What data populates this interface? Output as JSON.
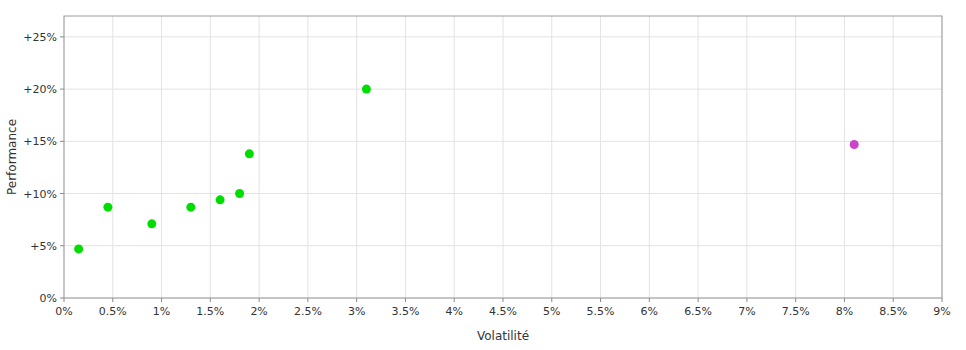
{
  "chart_data": {
    "type": "scatter",
    "xlabel": "Volatilité",
    "ylabel": "Performance",
    "xlim": [
      0,
      0.09
    ],
    "ylim": [
      0,
      0.27
    ],
    "xticks": [
      {
        "value": 0.0,
        "label": "0%"
      },
      {
        "value": 0.005,
        "label": "0.5%"
      },
      {
        "value": 0.01,
        "label": "1%"
      },
      {
        "value": 0.015,
        "label": "1.5%"
      },
      {
        "value": 0.02,
        "label": "2%"
      },
      {
        "value": 0.025,
        "label": "2.5%"
      },
      {
        "value": 0.03,
        "label": "3%"
      },
      {
        "value": 0.035,
        "label": "3.5%"
      },
      {
        "value": 0.04,
        "label": "4%"
      },
      {
        "value": 0.045,
        "label": "4.5%"
      },
      {
        "value": 0.05,
        "label": "5%"
      },
      {
        "value": 0.055,
        "label": "5.5%"
      },
      {
        "value": 0.06,
        "label": "6%"
      },
      {
        "value": 0.065,
        "label": "6.5%"
      },
      {
        "value": 0.07,
        "label": "7%"
      },
      {
        "value": 0.075,
        "label": "7.5%"
      },
      {
        "value": 0.08,
        "label": "8%"
      },
      {
        "value": 0.085,
        "label": "8.5%"
      },
      {
        "value": 0.09,
        "label": "9%"
      }
    ],
    "yticks": [
      {
        "value": 0.0,
        "label": "0%"
      },
      {
        "value": 0.05,
        "label": "+5%"
      },
      {
        "value": 0.1,
        "label": "+10%"
      },
      {
        "value": 0.15,
        "label": "+15%"
      },
      {
        "value": 0.2,
        "label": "+20%"
      },
      {
        "value": 0.25,
        "label": "+25%"
      }
    ],
    "grid": true,
    "series": [
      {
        "color": "#00dd00",
        "x": [
          0.0015,
          0.0045,
          0.009,
          0.013,
          0.016,
          0.018,
          0.019,
          0.031
        ],
        "values": [
          0.047,
          0.087,
          0.071,
          0.087,
          0.094,
          0.1,
          0.138,
          0.2
        ]
      },
      {
        "color": "#cc44cc",
        "x": [
          0.081
        ],
        "values": [
          0.147
        ]
      }
    ]
  }
}
